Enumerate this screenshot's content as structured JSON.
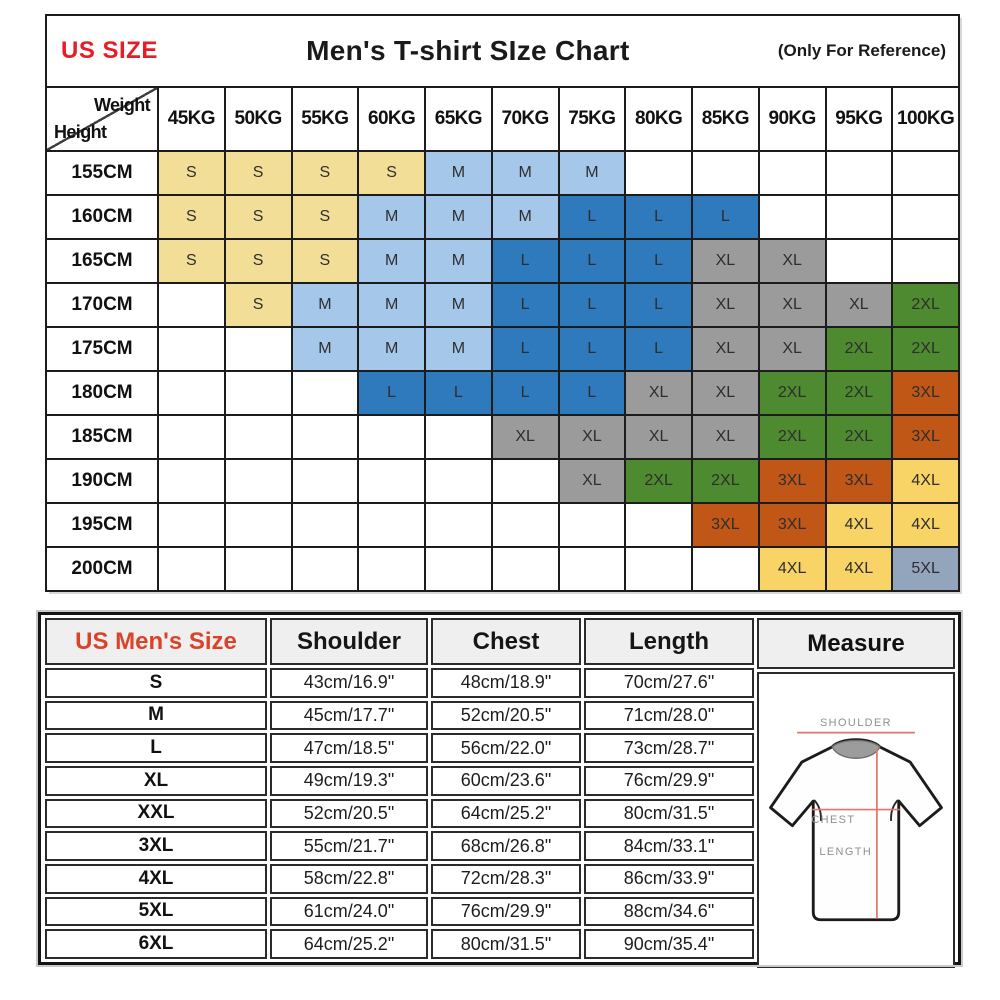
{
  "header": {
    "us_size_label": "US SIZE",
    "title": "Men's T-shirt SIze Chart",
    "reference_note": "(Only For Reference)",
    "corner": {
      "weight": "Weight",
      "height": "Height"
    }
  },
  "colors": {
    "S": "#f2de96",
    "M": "#a5c7e9",
    "L": "#2f7abd",
    "XL": "#9b9b9b",
    "2XL": "#4e8a2f",
    "3XL": "#c05717",
    "4XL": "#f8d365",
    "5XL": "#93a5bd"
  },
  "chart_data": [
    {
      "type": "heatmap",
      "title": "Men's T-shirt SIze Chart",
      "xlabel": "Weight",
      "ylabel": "Height",
      "weights": [
        "45KG",
        "50KG",
        "55KG",
        "60KG",
        "65KG",
        "70KG",
        "75KG",
        "80KG",
        "85KG",
        "90KG",
        "95KG",
        "100KG"
      ],
      "rows": [
        {
          "height": "155CM",
          "cells": [
            "S",
            "S",
            "S",
            "S",
            "M",
            "M",
            "M",
            "",
            "",
            "",
            "",
            ""
          ]
        },
        {
          "height": "160CM",
          "cells": [
            "S",
            "S",
            "S",
            "M",
            "M",
            "M",
            "L",
            "L",
            "L",
            "",
            "",
            ""
          ]
        },
        {
          "height": "165CM",
          "cells": [
            "S",
            "S",
            "S",
            "M",
            "M",
            "L",
            "L",
            "L",
            "XL",
            "XL",
            "",
            ""
          ]
        },
        {
          "height": "170CM",
          "cells": [
            "",
            "S",
            "M",
            "M",
            "M",
            "L",
            "L",
            "L",
            "XL",
            "XL",
            "XL",
            "2XL"
          ]
        },
        {
          "height": "175CM",
          "cells": [
            "",
            "",
            "M",
            "M",
            "M",
            "L",
            "L",
            "L",
            "XL",
            "XL",
            "2XL",
            "2XL"
          ]
        },
        {
          "height": "180CM",
          "cells": [
            "",
            "",
            "",
            "L",
            "L",
            "L",
            "L",
            "XL",
            "XL",
            "2XL",
            "2XL",
            "3XL"
          ]
        },
        {
          "height": "185CM",
          "cells": [
            "",
            "",
            "",
            "",
            "",
            "XL",
            "XL",
            "XL",
            "XL",
            "2XL",
            "2XL",
            "3XL"
          ]
        },
        {
          "height": "190CM",
          "cells": [
            "",
            "",
            "",
            "",
            "",
            "",
            "XL",
            "2XL",
            "2XL",
            "3XL",
            "3XL",
            "4XL"
          ]
        },
        {
          "height": "195CM",
          "cells": [
            "",
            "",
            "",
            "",
            "",
            "",
            "",
            "",
            "3XL",
            "3XL",
            "4XL",
            "4XL"
          ]
        },
        {
          "height": "200CM",
          "cells": [
            "",
            "",
            "",
            "",
            "",
            "",
            "",
            "",
            "",
            "4XL",
            "4XL",
            "5XL"
          ]
        }
      ]
    },
    {
      "type": "table",
      "headers": [
        "US Men's Size",
        "Shoulder",
        "Chest",
        "Length",
        "Measure"
      ],
      "rows": [
        {
          "size": "S",
          "shoulder": "43cm/16.9\"",
          "chest": "48cm/18.9\"",
          "length": "70cm/27.6\""
        },
        {
          "size": "M",
          "shoulder": "45cm/17.7\"",
          "chest": "52cm/20.5\"",
          "length": "71cm/28.0\""
        },
        {
          "size": "L",
          "shoulder": "47cm/18.5\"",
          "chest": "56cm/22.0\"",
          "length": "73cm/28.7\""
        },
        {
          "size": "XL",
          "shoulder": "49cm/19.3\"",
          "chest": "60cm/23.6\"",
          "length": "76cm/29.9\""
        },
        {
          "size": "XXL",
          "shoulder": "52cm/20.5\"",
          "chest": "64cm/25.2\"",
          "length": "80cm/31.5\""
        },
        {
          "size": "3XL",
          "shoulder": "55cm/21.7\"",
          "chest": "68cm/26.8\"",
          "length": "84cm/33.1\""
        },
        {
          "size": "4XL",
          "shoulder": "58cm/22.8\"",
          "chest": "72cm/28.3\"",
          "length": "86cm/33.9\""
        },
        {
          "size": "5XL",
          "shoulder": "61cm/24.0\"",
          "chest": "76cm/29.9\"",
          "length": "88cm/34.6\""
        },
        {
          "size": "6XL",
          "shoulder": "64cm/25.2\"",
          "chest": "80cm/31.5\"",
          "length": "90cm/35.4\""
        }
      ]
    }
  ],
  "diagram": {
    "shoulder_label": "SHOULDER",
    "chest_label": "CHEST",
    "length_label": "LENGTH"
  }
}
